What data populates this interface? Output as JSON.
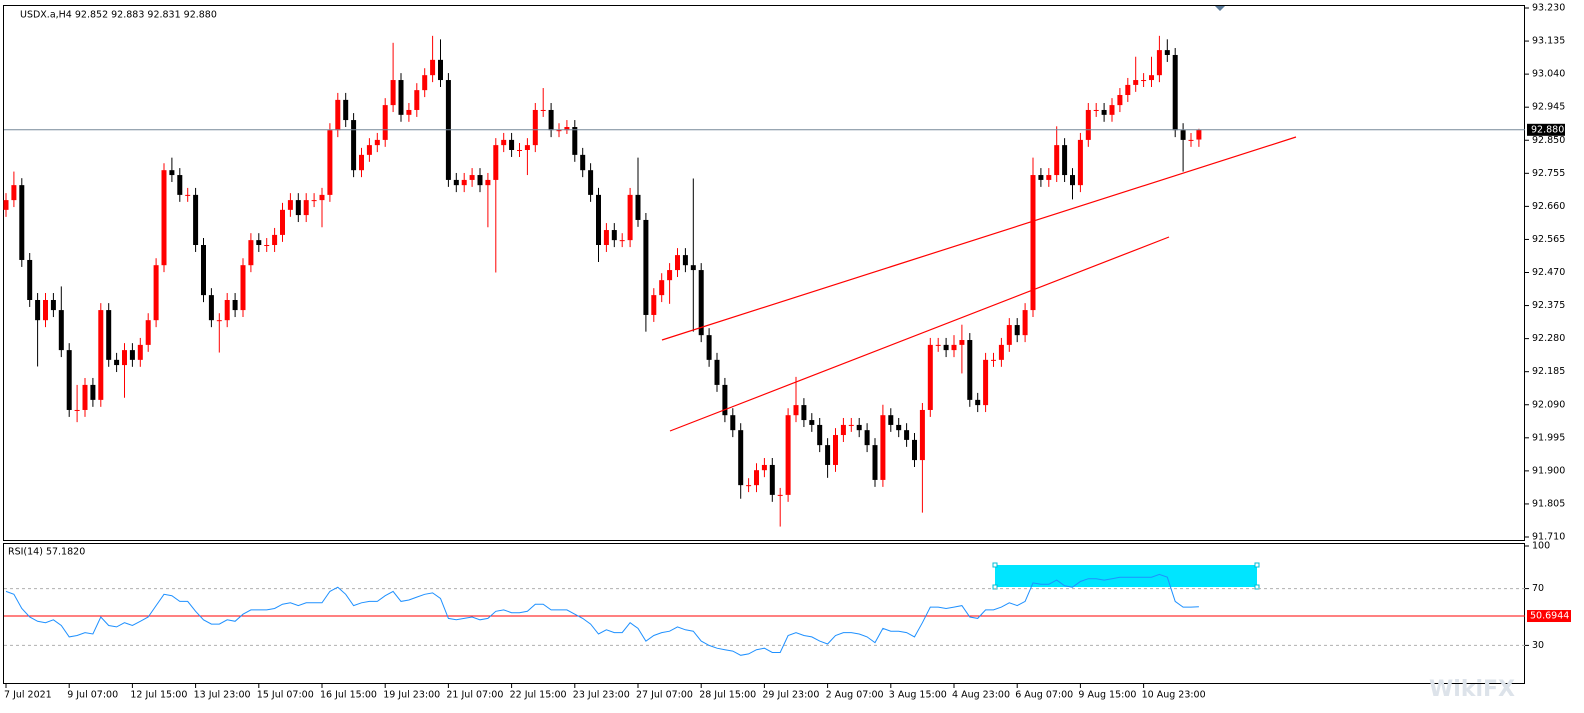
{
  "chart_data": {
    "type": "candlestick",
    "symbol_header": "USDX.a,H4  92.852 92.883 92.831 92.880",
    "up_color": "#ff0000",
    "down_color": "#000000",
    "ylim": [
      91.71,
      93.23
    ],
    "yticks": [
      {
        "value": 93.23,
        "label": "93.230"
      },
      {
        "value": 93.135,
        "label": "93.135"
      },
      {
        "value": 93.04,
        "label": "93.040"
      },
      {
        "value": 92.945,
        "label": "92.945"
      },
      {
        "value": 92.85,
        "label": "92.850"
      },
      {
        "value": 92.755,
        "label": "92.755"
      },
      {
        "value": 92.66,
        "label": "92.660"
      },
      {
        "value": 92.565,
        "label": "92.565"
      },
      {
        "value": 92.47,
        "label": "92.470"
      },
      {
        "value": 92.375,
        "label": "92.375"
      },
      {
        "value": 92.28,
        "label": "92.280"
      },
      {
        "value": 92.185,
        "label": "92.185"
      },
      {
        "value": 92.09,
        "label": "92.090"
      },
      {
        "value": 91.995,
        "label": "91.995"
      },
      {
        "value": 91.9,
        "label": "91.900"
      },
      {
        "value": 91.805,
        "label": "91.805"
      },
      {
        "value": 91.71,
        "label": "91.710"
      }
    ],
    "last_price": {
      "value": 92.88,
      "label": "92.880"
    },
    "categories": [
      "7 Jul 2021",
      null,
      null,
      null,
      null,
      null,
      null,
      null,
      "9 Jul 07:00",
      null,
      null,
      null,
      null,
      null,
      null,
      null,
      "12 Jul 15:00",
      null,
      null,
      null,
      null,
      null,
      null,
      null,
      "13 Jul 23:00",
      null,
      null,
      null,
      null,
      null,
      null,
      null,
      "15 Jul 07:00",
      null,
      null,
      null,
      null,
      null,
      null,
      null,
      "16 Jul 15:00",
      null,
      null,
      null,
      null,
      null,
      null,
      null,
      "19 Jul 23:00",
      null,
      null,
      null,
      null,
      null,
      null,
      null,
      "21 Jul 07:00",
      null,
      null,
      null,
      null,
      null,
      null,
      null,
      "22 Jul 15:00",
      null,
      null,
      null,
      null,
      null,
      null,
      null,
      "23 Jul 23:00",
      null,
      null,
      null,
      null,
      null,
      null,
      null,
      "27 Jul 07:00",
      null,
      null,
      null,
      null,
      null,
      null,
      null,
      "28 Jul 15:00",
      null,
      null,
      null,
      null,
      null,
      null,
      null,
      "29 Jul 23:00",
      null,
      null,
      null,
      null,
      null,
      null,
      null,
      "2 Aug 07:00",
      null,
      null,
      null,
      null,
      null,
      null,
      null,
      "3 Aug 15:00",
      null,
      null,
      null,
      null,
      null,
      null,
      null,
      "4 Aug 23:00",
      null,
      null,
      null,
      null,
      null,
      null,
      null,
      "6 Aug 07:00",
      null,
      null,
      null,
      null,
      null,
      null,
      null,
      "9 Aug 15:00",
      null,
      null,
      null,
      null,
      null,
      null,
      null,
      "10 Aug 23:00",
      null,
      null,
      null,
      null,
      null,
      null,
      null
    ],
    "ohlc": [
      [
        92.65,
        92.698,
        92.63,
        92.678
      ],
      [
        92.678,
        92.76,
        92.658,
        92.721
      ],
      [
        92.721,
        92.741,
        92.486,
        92.506
      ],
      [
        92.506,
        92.526,
        92.371,
        92.391
      ],
      [
        92.391,
        92.411,
        92.2,
        92.333
      ],
      [
        92.333,
        92.411,
        92.313,
        92.391
      ],
      [
        92.391,
        92.411,
        92.342,
        92.362
      ],
      [
        92.362,
        92.43,
        92.227,
        92.247
      ],
      [
        92.247,
        92.267,
        92.055,
        92.075
      ],
      [
        92.075,
        92.147,
        92.04,
        92.075
      ],
      [
        92.075,
        92.167,
        92.055,
        92.147
      ],
      [
        92.147,
        92.167,
        92.084,
        92.104
      ],
      [
        92.104,
        92.382,
        92.084,
        92.362
      ],
      [
        92.362,
        92.382,
        92.199,
        92.219
      ],
      [
        92.219,
        92.239,
        92.184,
        92.204
      ],
      [
        92.204,
        92.267,
        92.11,
        92.247
      ],
      [
        92.247,
        92.267,
        92.199,
        92.219
      ],
      [
        92.219,
        92.282,
        92.199,
        92.262
      ],
      [
        92.262,
        92.353,
        92.242,
        92.333
      ],
      [
        92.333,
        92.511,
        92.313,
        92.491
      ],
      [
        92.491,
        92.784,
        92.471,
        92.764
      ],
      [
        92.764,
        92.8,
        92.73,
        92.75
      ],
      [
        92.75,
        92.77,
        92.673,
        92.693
      ],
      [
        92.693,
        92.713,
        92.673,
        92.693
      ],
      [
        92.693,
        92.713,
        92.529,
        92.549
      ],
      [
        92.549,
        92.569,
        92.385,
        92.405
      ],
      [
        92.405,
        92.425,
        92.313,
        92.333
      ],
      [
        92.333,
        92.353,
        92.24,
        92.333
      ],
      [
        92.333,
        92.411,
        92.313,
        92.391
      ],
      [
        92.391,
        92.411,
        92.342,
        92.362
      ],
      [
        92.362,
        92.511,
        92.342,
        92.491
      ],
      [
        92.491,
        92.583,
        92.471,
        92.563
      ],
      [
        92.563,
        92.583,
        92.529,
        92.549
      ],
      [
        92.549,
        92.569,
        92.529,
        92.549
      ],
      [
        92.549,
        92.598,
        92.529,
        92.578
      ],
      [
        92.578,
        92.67,
        92.558,
        92.65
      ],
      [
        92.65,
        92.698,
        92.63,
        92.678
      ],
      [
        92.678,
        92.698,
        92.615,
        92.635
      ],
      [
        92.635,
        92.698,
        92.615,
        92.678
      ],
      [
        92.678,
        92.698,
        92.658,
        92.678
      ],
      [
        92.678,
        92.713,
        92.6,
        92.693
      ],
      [
        92.693,
        92.899,
        92.673,
        92.879
      ],
      [
        92.879,
        92.986,
        92.859,
        92.966
      ],
      [
        92.966,
        92.986,
        92.888,
        92.908
      ],
      [
        92.908,
        92.928,
        92.744,
        92.764
      ],
      [
        92.764,
        92.828,
        92.744,
        92.808
      ],
      [
        92.808,
        92.856,
        92.788,
        92.836
      ],
      [
        92.836,
        92.871,
        92.816,
        92.851
      ],
      [
        92.851,
        92.971,
        92.831,
        92.951
      ],
      [
        92.951,
        93.13,
        92.931,
        93.023
      ],
      [
        93.023,
        93.043,
        92.903,
        92.923
      ],
      [
        92.923,
        92.957,
        92.903,
        92.937
      ],
      [
        92.937,
        93.014,
        92.917,
        92.994
      ],
      [
        92.994,
        93.057,
        92.974,
        93.037
      ],
      [
        93.037,
        93.15,
        93.017,
        93.081
      ],
      [
        93.081,
        93.14,
        93.003,
        93.023
      ],
      [
        93.023,
        93.043,
        92.716,
        92.736
      ],
      [
        92.736,
        92.756,
        92.701,
        92.721
      ],
      [
        92.721,
        92.756,
        92.701,
        92.736
      ],
      [
        92.736,
        92.77,
        92.716,
        92.75
      ],
      [
        92.75,
        92.77,
        92.701,
        92.721
      ],
      [
        92.721,
        92.756,
        92.6,
        92.736
      ],
      [
        92.736,
        92.856,
        92.47,
        92.836
      ],
      [
        92.836,
        92.871,
        92.816,
        92.851
      ],
      [
        92.851,
        92.871,
        92.802,
        92.822
      ],
      [
        92.822,
        92.842,
        92.802,
        92.822
      ],
      [
        92.822,
        92.856,
        92.75,
        92.836
      ],
      [
        92.836,
        92.957,
        92.816,
        92.937
      ],
      [
        92.937,
        93.0,
        92.917,
        92.937
      ],
      [
        92.937,
        92.957,
        92.859,
        92.879
      ],
      [
        92.879,
        92.899,
        92.859,
        92.879
      ],
      [
        92.879,
        92.908,
        92.868,
        92.888
      ],
      [
        92.888,
        92.908,
        92.788,
        92.808
      ],
      [
        92.808,
        92.828,
        92.744,
        92.764
      ],
      [
        92.764,
        92.784,
        92.673,
        92.693
      ],
      [
        92.693,
        92.713,
        92.5,
        92.549
      ],
      [
        92.549,
        92.612,
        92.529,
        92.592
      ],
      [
        92.592,
        92.612,
        92.543,
        92.563
      ],
      [
        92.563,
        92.583,
        92.543,
        92.563
      ],
      [
        92.563,
        92.713,
        92.543,
        92.693
      ],
      [
        92.693,
        92.8,
        92.601,
        92.621
      ],
      [
        92.621,
        92.641,
        92.3,
        92.348
      ],
      [
        92.348,
        92.425,
        92.328,
        92.405
      ],
      [
        92.405,
        92.468,
        92.385,
        92.448
      ],
      [
        92.448,
        92.497,
        92.38,
        92.477
      ],
      [
        92.477,
        92.54,
        92.457,
        92.52
      ],
      [
        92.52,
        92.54,
        92.471,
        92.491
      ],
      [
        92.491,
        92.74,
        92.3,
        92.477
      ],
      [
        92.477,
        92.497,
        92.27,
        92.29
      ],
      [
        92.29,
        92.31,
        92.199,
        92.219
      ],
      [
        92.219,
        92.239,
        92.127,
        92.147
      ],
      [
        92.147,
        92.167,
        92.04,
        92.06
      ],
      [
        92.06,
        92.08,
        91.997,
        92.017
      ],
      [
        92.017,
        92.037,
        91.82,
        91.859
      ],
      [
        91.859,
        91.879,
        91.839,
        91.859
      ],
      [
        91.859,
        91.922,
        91.839,
        91.902
      ],
      [
        91.902,
        91.937,
        91.882,
        91.917
      ],
      [
        91.917,
        91.937,
        91.811,
        91.831
      ],
      [
        91.831,
        91.851,
        91.74,
        91.831
      ],
      [
        91.831,
        92.08,
        91.811,
        92.06
      ],
      [
        92.06,
        92.17,
        92.04,
        92.089
      ],
      [
        92.089,
        92.109,
        92.026,
        92.046
      ],
      [
        92.046,
        92.066,
        92.012,
        92.032
      ],
      [
        92.032,
        92.052,
        91.954,
        91.974
      ],
      [
        91.974,
        91.994,
        91.88,
        91.917
      ],
      [
        91.917,
        92.023,
        91.897,
        92.003
      ],
      [
        92.003,
        92.052,
        91.983,
        92.032
      ],
      [
        92.032,
        92.052,
        92.012,
        92.032
      ],
      [
        92.032,
        92.052,
        91.997,
        92.017
      ],
      [
        92.017,
        92.037,
        91.954,
        91.974
      ],
      [
        91.974,
        91.994,
        91.854,
        91.874
      ],
      [
        91.874,
        92.09,
        91.854,
        92.06
      ],
      [
        92.06,
        92.08,
        92.012,
        92.032
      ],
      [
        92.032,
        92.052,
        91.997,
        92.017
      ],
      [
        92.017,
        92.037,
        91.969,
        91.989
      ],
      [
        91.989,
        92.009,
        91.911,
        91.931
      ],
      [
        91.931,
        92.095,
        91.78,
        92.075
      ],
      [
        92.075,
        92.282,
        92.055,
        92.262
      ],
      [
        92.262,
        92.282,
        92.242,
        92.262
      ],
      [
        92.262,
        92.282,
        92.227,
        92.247
      ],
      [
        92.247,
        92.29,
        92.227,
        92.262
      ],
      [
        92.262,
        92.32,
        92.18,
        92.276
      ],
      [
        92.276,
        92.296,
        92.084,
        92.104
      ],
      [
        92.104,
        92.124,
        92.069,
        92.089
      ],
      [
        92.089,
        92.239,
        92.069,
        92.219
      ],
      [
        92.219,
        92.239,
        92.199,
        92.219
      ],
      [
        92.219,
        92.282,
        92.199,
        92.262
      ],
      [
        92.262,
        92.339,
        92.242,
        92.319
      ],
      [
        92.319,
        92.339,
        92.27,
        92.29
      ],
      [
        92.29,
        92.382,
        92.27,
        92.362
      ],
      [
        92.362,
        92.8,
        92.342,
        92.75
      ],
      [
        92.75,
        92.77,
        92.716,
        92.736
      ],
      [
        92.736,
        92.77,
        92.716,
        92.75
      ],
      [
        92.75,
        92.89,
        92.73,
        92.836
      ],
      [
        92.836,
        92.856,
        92.73,
        92.75
      ],
      [
        92.75,
        92.77,
        92.68,
        92.721
      ],
      [
        92.721,
        92.871,
        92.701,
        92.851
      ],
      [
        92.851,
        92.957,
        92.831,
        92.937
      ],
      [
        92.937,
        92.957,
        92.917,
        92.937
      ],
      [
        92.937,
        92.957,
        92.903,
        92.923
      ],
      [
        92.923,
        92.971,
        92.903,
        92.951
      ],
      [
        92.951,
        93.0,
        92.931,
        92.98
      ],
      [
        92.98,
        93.029,
        92.96,
        93.009
      ],
      [
        93.009,
        93.09,
        92.989,
        93.023
      ],
      [
        93.023,
        93.043,
        93.003,
        93.023
      ],
      [
        93.023,
        93.09,
        93.003,
        93.037
      ],
      [
        93.037,
        93.15,
        93.017,
        93.109
      ],
      [
        93.109,
        93.14,
        93.075,
        93.095
      ],
      [
        93.095,
        93.115,
        92.859,
        92.879
      ],
      [
        92.879,
        92.899,
        92.76,
        92.851
      ],
      [
        92.851,
        92.871,
        92.831,
        92.851
      ],
      [
        92.852,
        92.883,
        92.831,
        92.88
      ]
    ],
    "rsi": {
      "title": "RSI(14) 57.1820",
      "color": "#1e90ff",
      "ylim": [
        0,
        100
      ],
      "yticks": [
        100,
        70,
        30
      ],
      "level": {
        "value": 50.6944,
        "color": "#ff0000"
      },
      "values": [
        68,
        66,
        56,
        50,
        47,
        46,
        48,
        44,
        36,
        37,
        39,
        38,
        50,
        44,
        43,
        46,
        44,
        47,
        50,
        58,
        66,
        65,
        61,
        61,
        54,
        48,
        45,
        45,
        48,
        47,
        52,
        55,
        55,
        55,
        56,
        59,
        60,
        58,
        60,
        60,
        60,
        68,
        71,
        66,
        58,
        60,
        61,
        61,
        65,
        68,
        61,
        62,
        64,
        66,
        67,
        63,
        49,
        48,
        49,
        50,
        48,
        49,
        54,
        55,
        53,
        53,
        54,
        59,
        59,
        55,
        55,
        55,
        52,
        49,
        45,
        38,
        41,
        39,
        39,
        46,
        42,
        33,
        37,
        39,
        40,
        43,
        41,
        40,
        33,
        30,
        28,
        27,
        26,
        23,
        24,
        27,
        28,
        25,
        25,
        37,
        39,
        37,
        36,
        33,
        31,
        37,
        39,
        39,
        38,
        36,
        32,
        42,
        40,
        40,
        39,
        36,
        46,
        57,
        57,
        56,
        57,
        58,
        50,
        49,
        55,
        55,
        57,
        60,
        58,
        61,
        74,
        73,
        73,
        76,
        72,
        71,
        75,
        77,
        77,
        76,
        77,
        78,
        78,
        78,
        78,
        78,
        80,
        78,
        61,
        57,
        57,
        57.182
      ]
    },
    "watermark": "WikiFX"
  }
}
